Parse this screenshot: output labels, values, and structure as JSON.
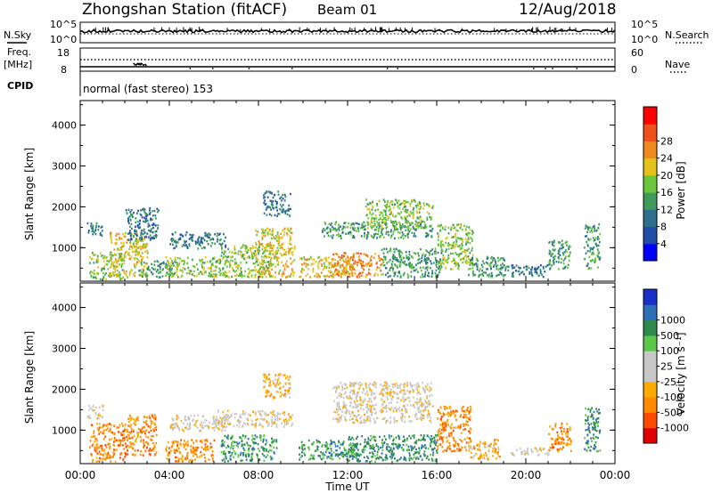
{
  "header": {
    "station": "Zhongshan Station (fitACF)",
    "beam": "Beam 01",
    "date": "12/Aug/2018"
  },
  "top_panels": {
    "nsky_label": "N.Sky",
    "nsky_ticks": [
      "10^5",
      "10^0"
    ],
    "nsearch_label": "N.Search",
    "nsearch_ticks": [
      "10^5",
      "10^0"
    ],
    "freq_label_line1": "Freq.",
    "freq_label_line2": "[MHz]",
    "freq_ticks": [
      "18",
      "8"
    ],
    "nave_label": "Nave",
    "nave_ticks": [
      "60",
      "0"
    ],
    "cpid_label": "CPID",
    "cpid_text": "normal (fast stereo) 153"
  },
  "colors": {
    "scale_power": [
      "#0000ff",
      "#1f4fa6",
      "#2e6f8e",
      "#3d9b5c",
      "#6cc63c",
      "#e5c21a",
      "#f08a1f",
      "#f0501a",
      "#ff0000"
    ],
    "scale_velocity": [
      "#e00000",
      "#ff4a00",
      "#ff8a00",
      "#ffaa00",
      "#c8c8c8",
      "#c8c8c8",
      "#5cc84a",
      "#2e8a4a",
      "#2e70b8",
      "#1830c8"
    ]
  },
  "chart_data": [
    {
      "type": "heatmap",
      "panel": "power",
      "ylabel": "Slant Range [km]",
      "y_ticks": [
        "1000",
        "2000",
        "3000",
        "4000"
      ],
      "ylim": [
        180,
        4600
      ],
      "x_ticks": [
        "00:00",
        "04:00",
        "08:00",
        "12:00",
        "16:00",
        "20:00",
        "00:00"
      ],
      "xlim_hours": [
        0,
        24
      ],
      "colorbar_label": "Power [dB]",
      "colorbar_ticks": [
        "4",
        "8",
        "12",
        "16",
        "20",
        "24",
        "28"
      ],
      "clusters": [
        {
          "x": [
            0.3,
            1.0
          ],
          "y": [
            1300,
            1650
          ],
          "level": 2
        },
        {
          "x": [
            0.4,
            1.9
          ],
          "y": [
            250,
            900
          ],
          "level": 4
        },
        {
          "x": [
            1.3,
            3.0
          ],
          "y": [
            300,
            1400
          ],
          "level": 5
        },
        {
          "x": [
            2.6,
            4.2
          ],
          "y": [
            300,
            700
          ],
          "level": 3
        },
        {
          "x": [
            3.8,
            6.3
          ],
          "y": [
            300,
            800
          ],
          "level": 4
        },
        {
          "x": [
            2.0,
            3.5
          ],
          "y": [
            1200,
            2000
          ],
          "level": 2
        },
        {
          "x": [
            4.0,
            6.5
          ],
          "y": [
            1000,
            1400
          ],
          "level": 2
        },
        {
          "x": [
            6.3,
            8.5
          ],
          "y": [
            300,
            1100
          ],
          "level": 4
        },
        {
          "x": [
            7.8,
            9.6
          ],
          "y": [
            300,
            1500
          ],
          "level": 5
        },
        {
          "x": [
            8.2,
            9.4
          ],
          "y": [
            1800,
            2400
          ],
          "level": 2
        },
        {
          "x": [
            9.8,
            12.2
          ],
          "y": [
            300,
            800
          ],
          "level": 5
        },
        {
          "x": [
            11.3,
            13.5
          ],
          "y": [
            300,
            900
          ],
          "level": 6
        },
        {
          "x": [
            10.8,
            15.8
          ],
          "y": [
            1250,
            1650
          ],
          "level": 3
        },
        {
          "x": [
            12.8,
            15.8
          ],
          "y": [
            1500,
            2200
          ],
          "level": 4
        },
        {
          "x": [
            13.5,
            16.2
          ],
          "y": [
            300,
            1000
          ],
          "level": 3
        },
        {
          "x": [
            16.0,
            17.6
          ],
          "y": [
            500,
            1600
          ],
          "level": 4
        },
        {
          "x": [
            17.4,
            19.2
          ],
          "y": [
            300,
            800
          ],
          "level": 3
        },
        {
          "x": [
            19.3,
            21.0
          ],
          "y": [
            300,
            600
          ],
          "level": 2
        },
        {
          "x": [
            21.0,
            22.0
          ],
          "y": [
            500,
            1200
          ],
          "level": 3
        },
        {
          "x": [
            22.6,
            23.3
          ],
          "y": [
            500,
            1600
          ],
          "level": 3
        }
      ]
    },
    {
      "type": "heatmap",
      "panel": "velocity",
      "ylabel": "Slant Range [km]",
      "y_ticks": [
        "1000",
        "2000",
        "3000",
        "4000"
      ],
      "ylim": [
        180,
        4600
      ],
      "x_ticks": [
        "00:00",
        "04:00",
        "08:00",
        "12:00",
        "16:00",
        "20:00",
        "00:00"
      ],
      "xlim_hours": [
        0,
        24
      ],
      "xlabel": "Time UT",
      "colorbar_label": "Velocity [m s⁻¹]",
      "colorbar_ticks": [
        "-1000",
        "-500",
        "-100",
        "-25",
        "25",
        "100",
        "500",
        "1000"
      ],
      "clusters": [
        {
          "x": [
            0.3,
            1.0
          ],
          "y": [
            1300,
            1650
          ],
          "level": 4
        },
        {
          "x": [
            0.4,
            2.0
          ],
          "y": [
            250,
            1200
          ],
          "level": 2
        },
        {
          "x": [
            2.0,
            3.4
          ],
          "y": [
            400,
            1400
          ],
          "level": 2
        },
        {
          "x": [
            3.8,
            6.0
          ],
          "y": [
            250,
            800
          ],
          "level": 2
        },
        {
          "x": [
            4.0,
            6.5
          ],
          "y": [
            1000,
            1400
          ],
          "level": 4
        },
        {
          "x": [
            6.3,
            8.8
          ],
          "y": [
            250,
            900
          ],
          "level": 7
        },
        {
          "x": [
            6.0,
            9.5
          ],
          "y": [
            1100,
            1500
          ],
          "level": 4
        },
        {
          "x": [
            8.2,
            9.4
          ],
          "y": [
            1800,
            2400
          ],
          "level": 3
        },
        {
          "x": [
            9.8,
            12.5
          ],
          "y": [
            300,
            800
          ],
          "level": 7
        },
        {
          "x": [
            11.3,
            15.8
          ],
          "y": [
            1200,
            2200
          ],
          "level": 4
        },
        {
          "x": [
            12.0,
            16.0
          ],
          "y": [
            250,
            900
          ],
          "level": 7
        },
        {
          "x": [
            16.0,
            17.5
          ],
          "y": [
            500,
            1600
          ],
          "level": 2
        },
        {
          "x": [
            17.4,
            18.8
          ],
          "y": [
            300,
            800
          ],
          "level": 3
        },
        {
          "x": [
            19.3,
            21.0
          ],
          "y": [
            400,
            600
          ],
          "level": 4
        },
        {
          "x": [
            21.0,
            22.0
          ],
          "y": [
            500,
            1200
          ],
          "level": 2
        },
        {
          "x": [
            22.6,
            23.3
          ],
          "y": [
            500,
            1600
          ],
          "level": 7
        }
      ]
    }
  ]
}
